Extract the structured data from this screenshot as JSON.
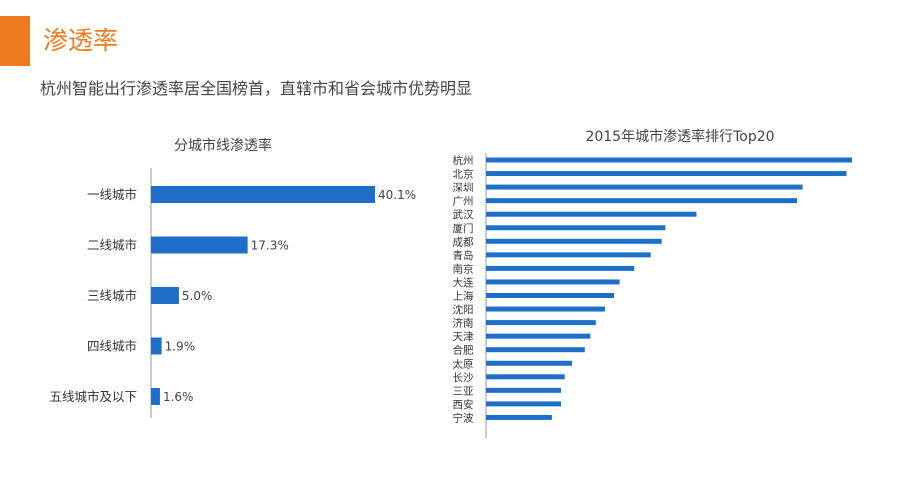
{
  "header": {
    "title": "渗透率",
    "subtitle": "杭州智能出行渗透率居全国榜首，直辖市和省会城市优势明显"
  },
  "colors": {
    "accent": "#f07a1f",
    "bar": "#1f6fc9"
  },
  "chart_data": [
    {
      "type": "bar",
      "orientation": "horizontal",
      "title": "分城市线渗透率",
      "categories": [
        "一线城市",
        "二线城市",
        "三线城市",
        "四线城市",
        "五线城市及以下"
      ],
      "values": [
        40.1,
        17.3,
        5.0,
        1.9,
        1.6
      ],
      "value_labels": [
        "40.1%",
        "17.3%",
        "5.0%",
        "1.9%",
        "1.6%"
      ],
      "unit": "%",
      "xlim": [
        0,
        40.1
      ]
    },
    {
      "type": "bar",
      "orientation": "horizontal",
      "title": "2015年城市渗透率排行Top20",
      "categories": [
        "杭州",
        "北京",
        "深圳",
        "广州",
        "武汉",
        "厦门",
        "成都",
        "青岛",
        "南京",
        "大连",
        "上海",
        "沈阳",
        "济南",
        "天津",
        "合肥",
        "太原",
        "长沙",
        "三亚",
        "西安",
        "宁波"
      ],
      "values": [
        100,
        98.5,
        86.5,
        85,
        57.5,
        49,
        48,
        45,
        40.5,
        36.5,
        35,
        32.5,
        30,
        28.5,
        27,
        23.5,
        21.5,
        20.5,
        20.5,
        18
      ],
      "unit": "relative index (no axis shown)",
      "xlim": [
        0,
        100
      ]
    }
  ]
}
